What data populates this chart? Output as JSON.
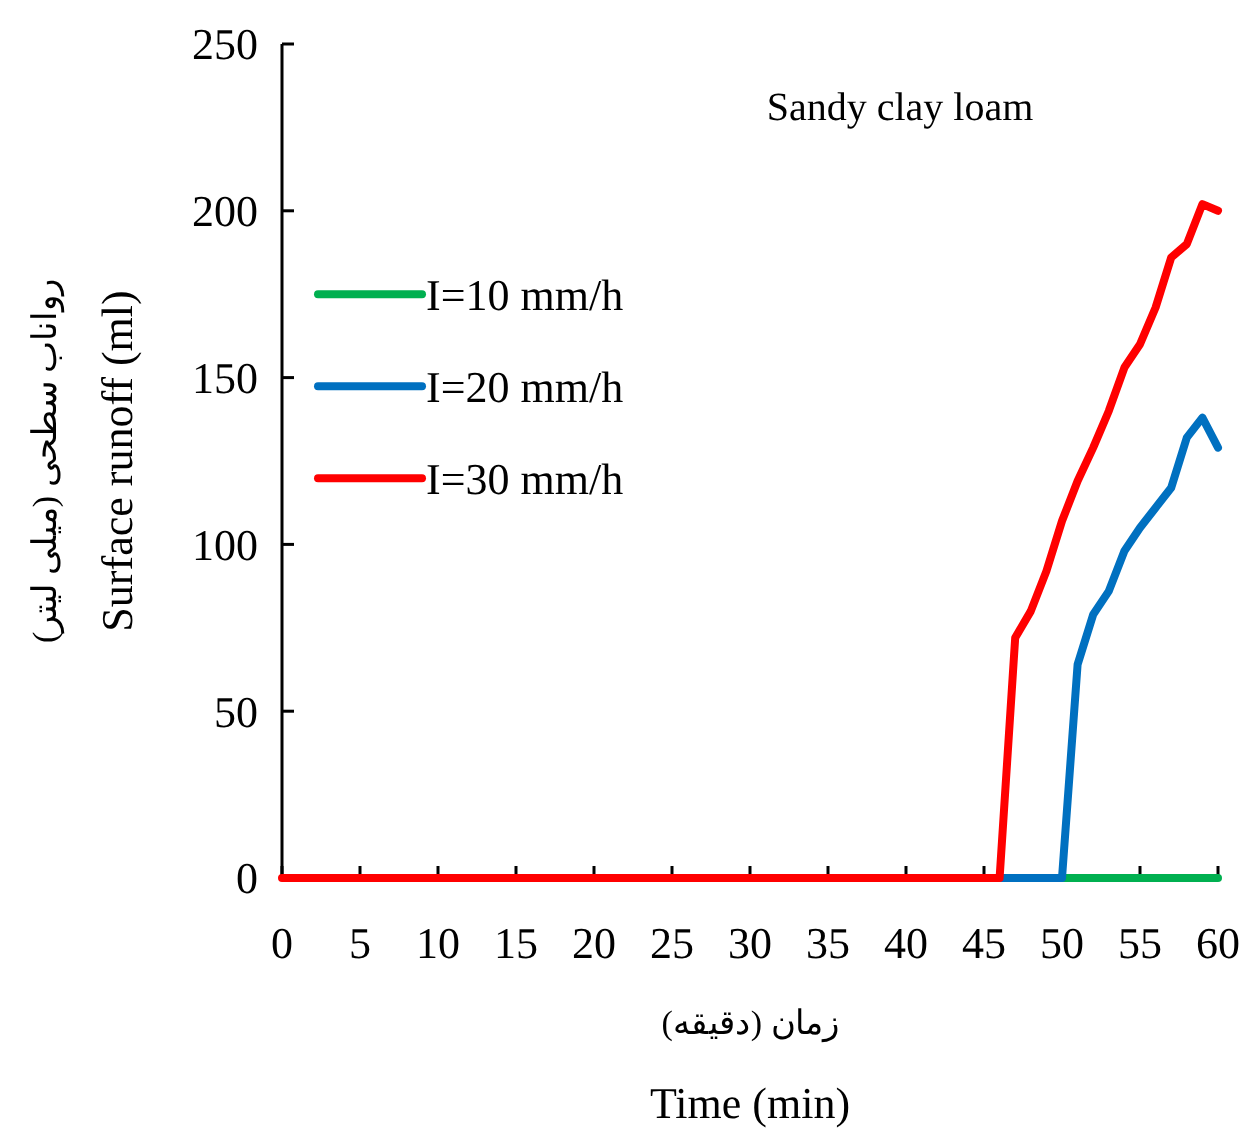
{
  "chart_data": {
    "type": "line",
    "title": "Sandy clay loam",
    "xlabel": "زمان (دقیقه)\nTime (min)",
    "ylabel": "رواناب سطحی (میلی لیتر)\nSurface runoff (ml)",
    "x": [
      0,
      1,
      2,
      3,
      4,
      5,
      6,
      7,
      8,
      9,
      10,
      11,
      12,
      13,
      14,
      15,
      16,
      17,
      18,
      19,
      20,
      21,
      22,
      23,
      24,
      25,
      26,
      27,
      28,
      29,
      30,
      31,
      32,
      33,
      34,
      35,
      36,
      37,
      38,
      39,
      40,
      41,
      42,
      43,
      44,
      45,
      46,
      47,
      48,
      49,
      50,
      51,
      52,
      53,
      54,
      55,
      56,
      57,
      58,
      59,
      60
    ],
    "series": [
      {
        "name": "I=10 mm/h",
        "color": "#00b050",
        "values": [
          null,
          null,
          null,
          null,
          null,
          null,
          null,
          null,
          null,
          null,
          null,
          null,
          null,
          null,
          null,
          null,
          null,
          null,
          null,
          null,
          null,
          null,
          null,
          null,
          null,
          null,
          null,
          null,
          null,
          null,
          null,
          null,
          null,
          null,
          null,
          null,
          null,
          null,
          null,
          null,
          null,
          null,
          null,
          null,
          null,
          null,
          null,
          null,
          null,
          null,
          0,
          0,
          0,
          0,
          0,
          0,
          0,
          0,
          0,
          0,
          0
        ]
      },
      {
        "name": "I=20 mm/h",
        "color": "#0070c0",
        "values": [
          null,
          null,
          null,
          null,
          null,
          null,
          null,
          null,
          null,
          null,
          null,
          null,
          null,
          null,
          null,
          null,
          null,
          null,
          null,
          null,
          null,
          null,
          null,
          null,
          null,
          null,
          null,
          null,
          null,
          null,
          null,
          null,
          null,
          null,
          null,
          null,
          null,
          null,
          null,
          null,
          null,
          null,
          null,
          null,
          null,
          null,
          0,
          0,
          0,
          0,
          0,
          64,
          79,
          86,
          98,
          105,
          111,
          117,
          132,
          138,
          129
        ]
      },
      {
        "name": "I=30 mm/h",
        "color": "#ff0000",
        "values": [
          0,
          0,
          0,
          0,
          0,
          0,
          0,
          0,
          0,
          0,
          0,
          0,
          0,
          0,
          0,
          0,
          0,
          0,
          0,
          0,
          0,
          0,
          0,
          0,
          0,
          0,
          0,
          0,
          0,
          0,
          0,
          0,
          0,
          0,
          0,
          0,
          0,
          0,
          0,
          0,
          0,
          0,
          0,
          0,
          0,
          0,
          0,
          72,
          80,
          92,
          107,
          119,
          129,
          140,
          153,
          160,
          171,
          186,
          190,
          202,
          200
        ]
      }
    ],
    "xlim": [
      0,
      60
    ],
    "xticks": [
      0,
      5,
      10,
      15,
      20,
      25,
      30,
      35,
      40,
      45,
      50,
      55,
      60
    ],
    "ylim": [
      0,
      250
    ],
    "yticks": [
      0,
      50,
      100,
      150,
      200,
      250
    ],
    "legend": "left",
    "grid": false,
    "marker": "none",
    "line_style": "solid"
  }
}
